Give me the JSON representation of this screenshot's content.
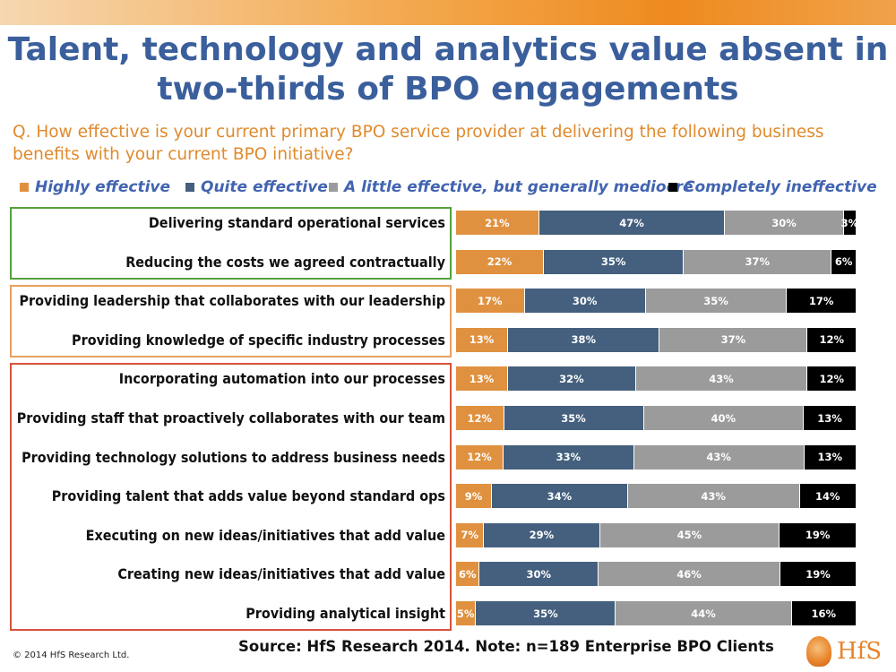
{
  "title_line1": "Talent, technology and analytics value absent in",
  "title_line2": "two-thirds of BPO engagements",
  "question": "Q. How effective is your current primary BPO service provider at delivering the following business benefits with your current BPO initiative?",
  "footer": {
    "copyright": "© 2014 HfS Research Ltd.",
    "source": "Source: HfS Research 2014.  Note: n=189 Enterprise BPO Clients",
    "logo_text": "HfS"
  },
  "colors": {
    "highly": "#e0913f",
    "quite": "#44607e",
    "little": "#9b9b9b",
    "completely": "#000000",
    "box_green": "#55a03c",
    "box_orange": "#e8a060",
    "box_red": "#d9533a"
  },
  "chart_data": {
    "type": "bar",
    "orientation": "horizontal",
    "stacked": true,
    "normalized": true,
    "title": "Talent, technology and analytics value absent in two-thirds of BPO engagements",
    "xlabel": "",
    "ylabel": "",
    "legend_position": "top",
    "value_format": "percent",
    "categories": [
      "Delivering standard operational services",
      "Reducing the costs we agreed contractually",
      "Providing leadership that  collaborates with our leadership",
      "Providing knowledge of specific industry processes",
      "Incorporating automation into our processes",
      "Providing staff that proactively collaborates with our team",
      "Providing technology solutions to address business needs",
      "Providing talent that adds value beyond standard ops",
      "Executing on new ideas/initiatives that add value",
      "Creating new ideas/initiatives that add value",
      "Providing analytical insight"
    ],
    "series": [
      {
        "name": "Highly effective",
        "color": "#e0913f",
        "values": [
          21,
          22,
          17,
          13,
          13,
          12,
          12,
          9,
          7,
          6,
          5
        ]
      },
      {
        "name": "Quite effective",
        "color": "#44607e",
        "values": [
          47,
          35,
          30,
          38,
          32,
          35,
          33,
          34,
          29,
          30,
          35
        ]
      },
      {
        "name": "A little effective, but generally mediocre",
        "color": "#9b9b9b",
        "values": [
          30,
          37,
          35,
          37,
          43,
          40,
          43,
          43,
          45,
          46,
          44
        ]
      },
      {
        "name": "Completely ineffective",
        "color": "#000000",
        "values": [
          3,
          6,
          17,
          12,
          12,
          13,
          13,
          14,
          19,
          19,
          16
        ]
      }
    ],
    "groups": [
      {
        "color": "box_green",
        "rows": [
          0,
          1
        ]
      },
      {
        "color": "box_orange",
        "rows": [
          2,
          3
        ]
      },
      {
        "color": "box_red",
        "rows": [
          4,
          5,
          6,
          7,
          8,
          9,
          10
        ]
      }
    ]
  }
}
